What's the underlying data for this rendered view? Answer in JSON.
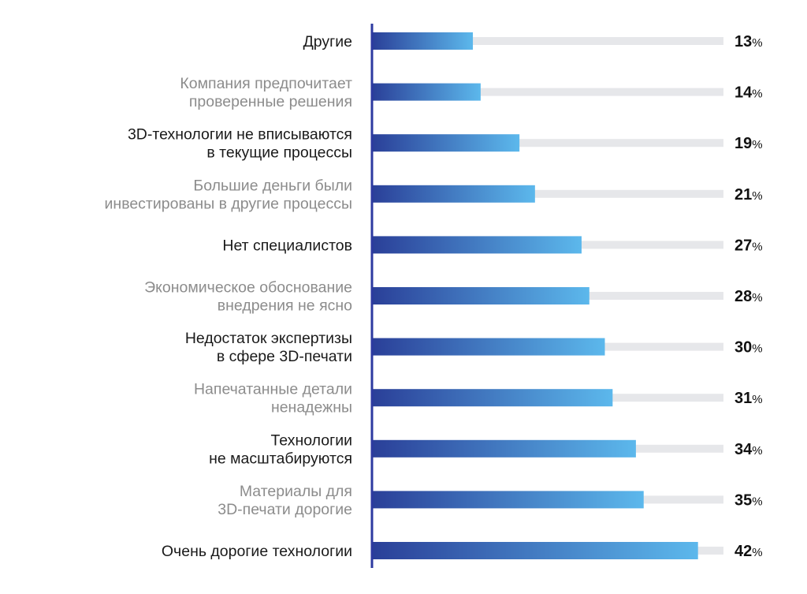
{
  "chart_data": {
    "type": "bar",
    "orientation": "horizontal",
    "title": "",
    "xlabel": "",
    "ylabel": "",
    "xlim": [
      0,
      45
    ],
    "grid": false,
    "value_suffix": "%",
    "categories": [
      [
        "Другие"
      ],
      [
        "Компания предпочитает",
        "проверенные решения"
      ],
      [
        "3D-технологии не вписываются",
        "в текущие процессы"
      ],
      [
        "Большие деньги были",
        "инвестированы в другие процессы"
      ],
      [
        "Нет специалистов"
      ],
      [
        "Экономическое обоснование",
        "внедрения не ясно"
      ],
      [
        "Недостаток экспертизы",
        "в сфере 3D-печати"
      ],
      [
        "Напечатанные детали",
        "ненадежны"
      ],
      [
        "Технологии",
        "не масштабируются"
      ],
      [
        "Материалы для",
        "3D-печати дорогие"
      ],
      [
        "Очень дорогие технологии"
      ]
    ],
    "values": [
      13,
      14,
      19,
      21,
      27,
      28,
      30,
      31,
      34,
      35,
      42
    ]
  },
  "colors": {
    "bar_gradient_start": "#2a3f98",
    "bar_gradient_end": "#5cb8ec",
    "track": "#e6e7ea",
    "axis": "#2d3aa0",
    "label_dark": "#1a1a1a",
    "label_muted": "#8c8c8c"
  }
}
